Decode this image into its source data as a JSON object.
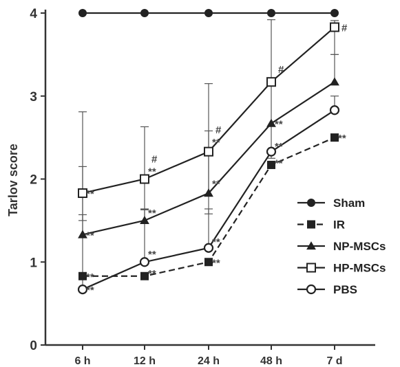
{
  "chart_data": {
    "type": "line",
    "title": "",
    "xlabel": "",
    "ylabel": "Tarlov score",
    "categories": [
      "6 h",
      "12 h",
      "24 h",
      "48 h",
      "7 d"
    ],
    "ylim": [
      0,
      4
    ],
    "yticks": [
      "0",
      "1",
      "2",
      "3",
      "4"
    ],
    "grid": false,
    "legend_position": "bottom-right",
    "series": [
      {
        "name": "Sham",
        "marker": "filled-circle",
        "line": "solid",
        "color": "#222222",
        "values": [
          4,
          4,
          4,
          4,
          4
        ],
        "err_upper": [
          0,
          0,
          0,
          0,
          0
        ],
        "err_lower": [
          0,
          0,
          0,
          0,
          0
        ]
      },
      {
        "name": "IR",
        "marker": "filled-square",
        "line": "dashed",
        "color": "#222222",
        "values": [
          0.83,
          0.83,
          1.0,
          2.17,
          2.5
        ],
        "err_upper": [
          0,
          0,
          0,
          0,
          0
        ],
        "err_lower": [
          0,
          0,
          0,
          0,
          0
        ]
      },
      {
        "name": "NP-MSCs",
        "marker": "filled-triangle",
        "line": "solid",
        "color": "#222222",
        "values": [
          1.33,
          1.5,
          1.83,
          2.67,
          3.17
        ],
        "err_upper": [
          0.82,
          0.14,
          0.75,
          0,
          0.33
        ],
        "err_lower": [
          0,
          0,
          0,
          0,
          0
        ]
      },
      {
        "name": "HP-MSCs",
        "marker": "open-square",
        "line": "solid",
        "color": "#222222",
        "values": [
          1.83,
          2.0,
          2.33,
          3.17,
          3.83
        ],
        "err_upper": [
          0.98,
          0.63,
          0.82,
          0.75,
          0.08
        ],
        "err_lower": [
          0.33,
          0.37,
          0.75,
          0.92,
          0.33
        ]
      },
      {
        "name": "PBS",
        "marker": "open-circle",
        "line": "solid",
        "color": "#222222",
        "values": [
          0.67,
          1.0,
          1.17,
          2.33,
          2.83
        ],
        "err_upper": [
          0.9,
          0.63,
          0.47,
          0,
          0.17
        ],
        "err_lower": [
          0,
          0,
          0,
          0,
          0
        ]
      }
    ],
    "annotations": [
      {
        "text": "**",
        "category": "6 h",
        "y": 1.83
      },
      {
        "text": "**",
        "category": "6 h",
        "y": 1.33
      },
      {
        "text": "**",
        "category": "6 h",
        "y": 0.83
      },
      {
        "text": "**",
        "category": "6 h",
        "y": 0.67
      },
      {
        "text": "#",
        "category": "12 h",
        "y": 2.25
      },
      {
        "text": "**",
        "category": "12 h",
        "y": 2.1
      },
      {
        "text": "**",
        "category": "12 h",
        "y": 1.6
      },
      {
        "text": "**",
        "category": "12 h",
        "y": 1.1
      },
      {
        "text": "**",
        "category": "12 h",
        "y": 0.87
      },
      {
        "text": "#",
        "category": "24 h",
        "y": 2.6
      },
      {
        "text": "**",
        "category": "24 h",
        "y": 2.45
      },
      {
        "text": "**",
        "category": "24 h",
        "y": 1.95
      },
      {
        "text": "**",
        "category": "24 h",
        "y": 1.25
      },
      {
        "text": "**",
        "category": "24 h",
        "y": 1.0
      },
      {
        "text": "#",
        "category": "48 h",
        "y": 3.33
      },
      {
        "text": "**",
        "category": "48 h",
        "y": 2.67
      },
      {
        "text": "**",
        "category": "48 h",
        "y": 2.4
      },
      {
        "text": "**",
        "category": "48 h",
        "y": 2.2
      },
      {
        "text": "#",
        "category": "7 d",
        "y": 3.83
      },
      {
        "text": "**",
        "category": "7 d",
        "y": 2.5
      }
    ]
  }
}
